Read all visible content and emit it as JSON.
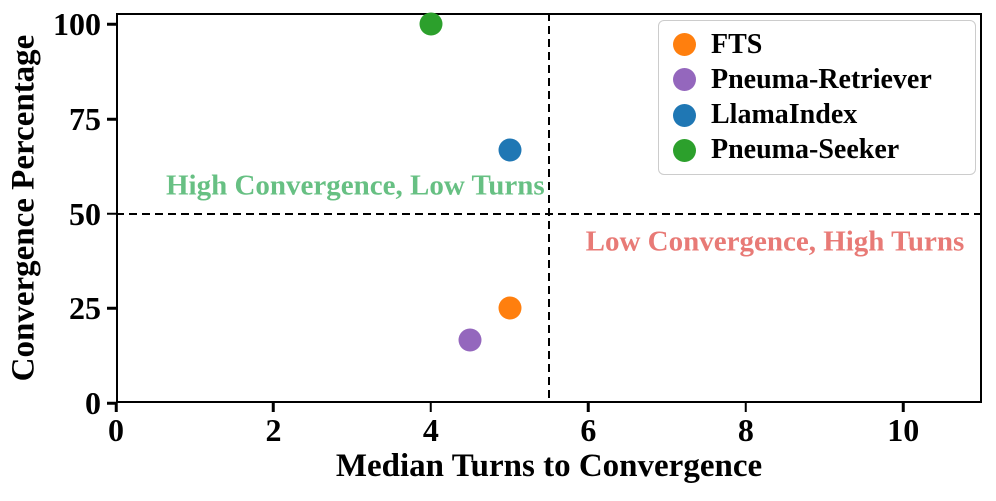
{
  "chart_data": {
    "type": "scatter",
    "title": "",
    "xlabel": "Median Turns to Convergence",
    "ylabel": "Convergence Percentage",
    "xlim": [
      0,
      11
    ],
    "ylim": [
      0,
      103
    ],
    "xticks": [
      0,
      2,
      4,
      6,
      8,
      10
    ],
    "yticks": [
      0,
      25,
      50,
      75,
      100
    ],
    "grid": false,
    "legend_position": "upper right",
    "series": [
      {
        "name": "FTS",
        "color": "#ff7f0e",
        "points": [
          [
            5,
            25
          ]
        ]
      },
      {
        "name": "Pneuma-Retriever",
        "color": "#9467bd",
        "points": [
          [
            4.5,
            16.7
          ]
        ]
      },
      {
        "name": "LlamaIndex",
        "color": "#1f77b4",
        "points": [
          [
            5,
            66.7
          ]
        ]
      },
      {
        "name": "Pneuma-Seeker",
        "color": "#2ca02c",
        "points": [
          [
            4,
            100
          ]
        ]
      }
    ],
    "reference_lines": [
      {
        "orientation": "horizontal",
        "value": 50,
        "style": "dashed",
        "color": "#000000"
      },
      {
        "orientation": "vertical",
        "value": 5.5,
        "style": "dashed",
        "color": "#000000"
      }
    ],
    "annotations": [
      {
        "text": "High Convergence, Low Turns",
        "color": "#67c083",
        "x": 3.04,
        "y": 57.2
      },
      {
        "text": "Low Convergence, High Turns",
        "color": "#e87a76",
        "x": 8.37,
        "y": 42.6
      }
    ]
  }
}
